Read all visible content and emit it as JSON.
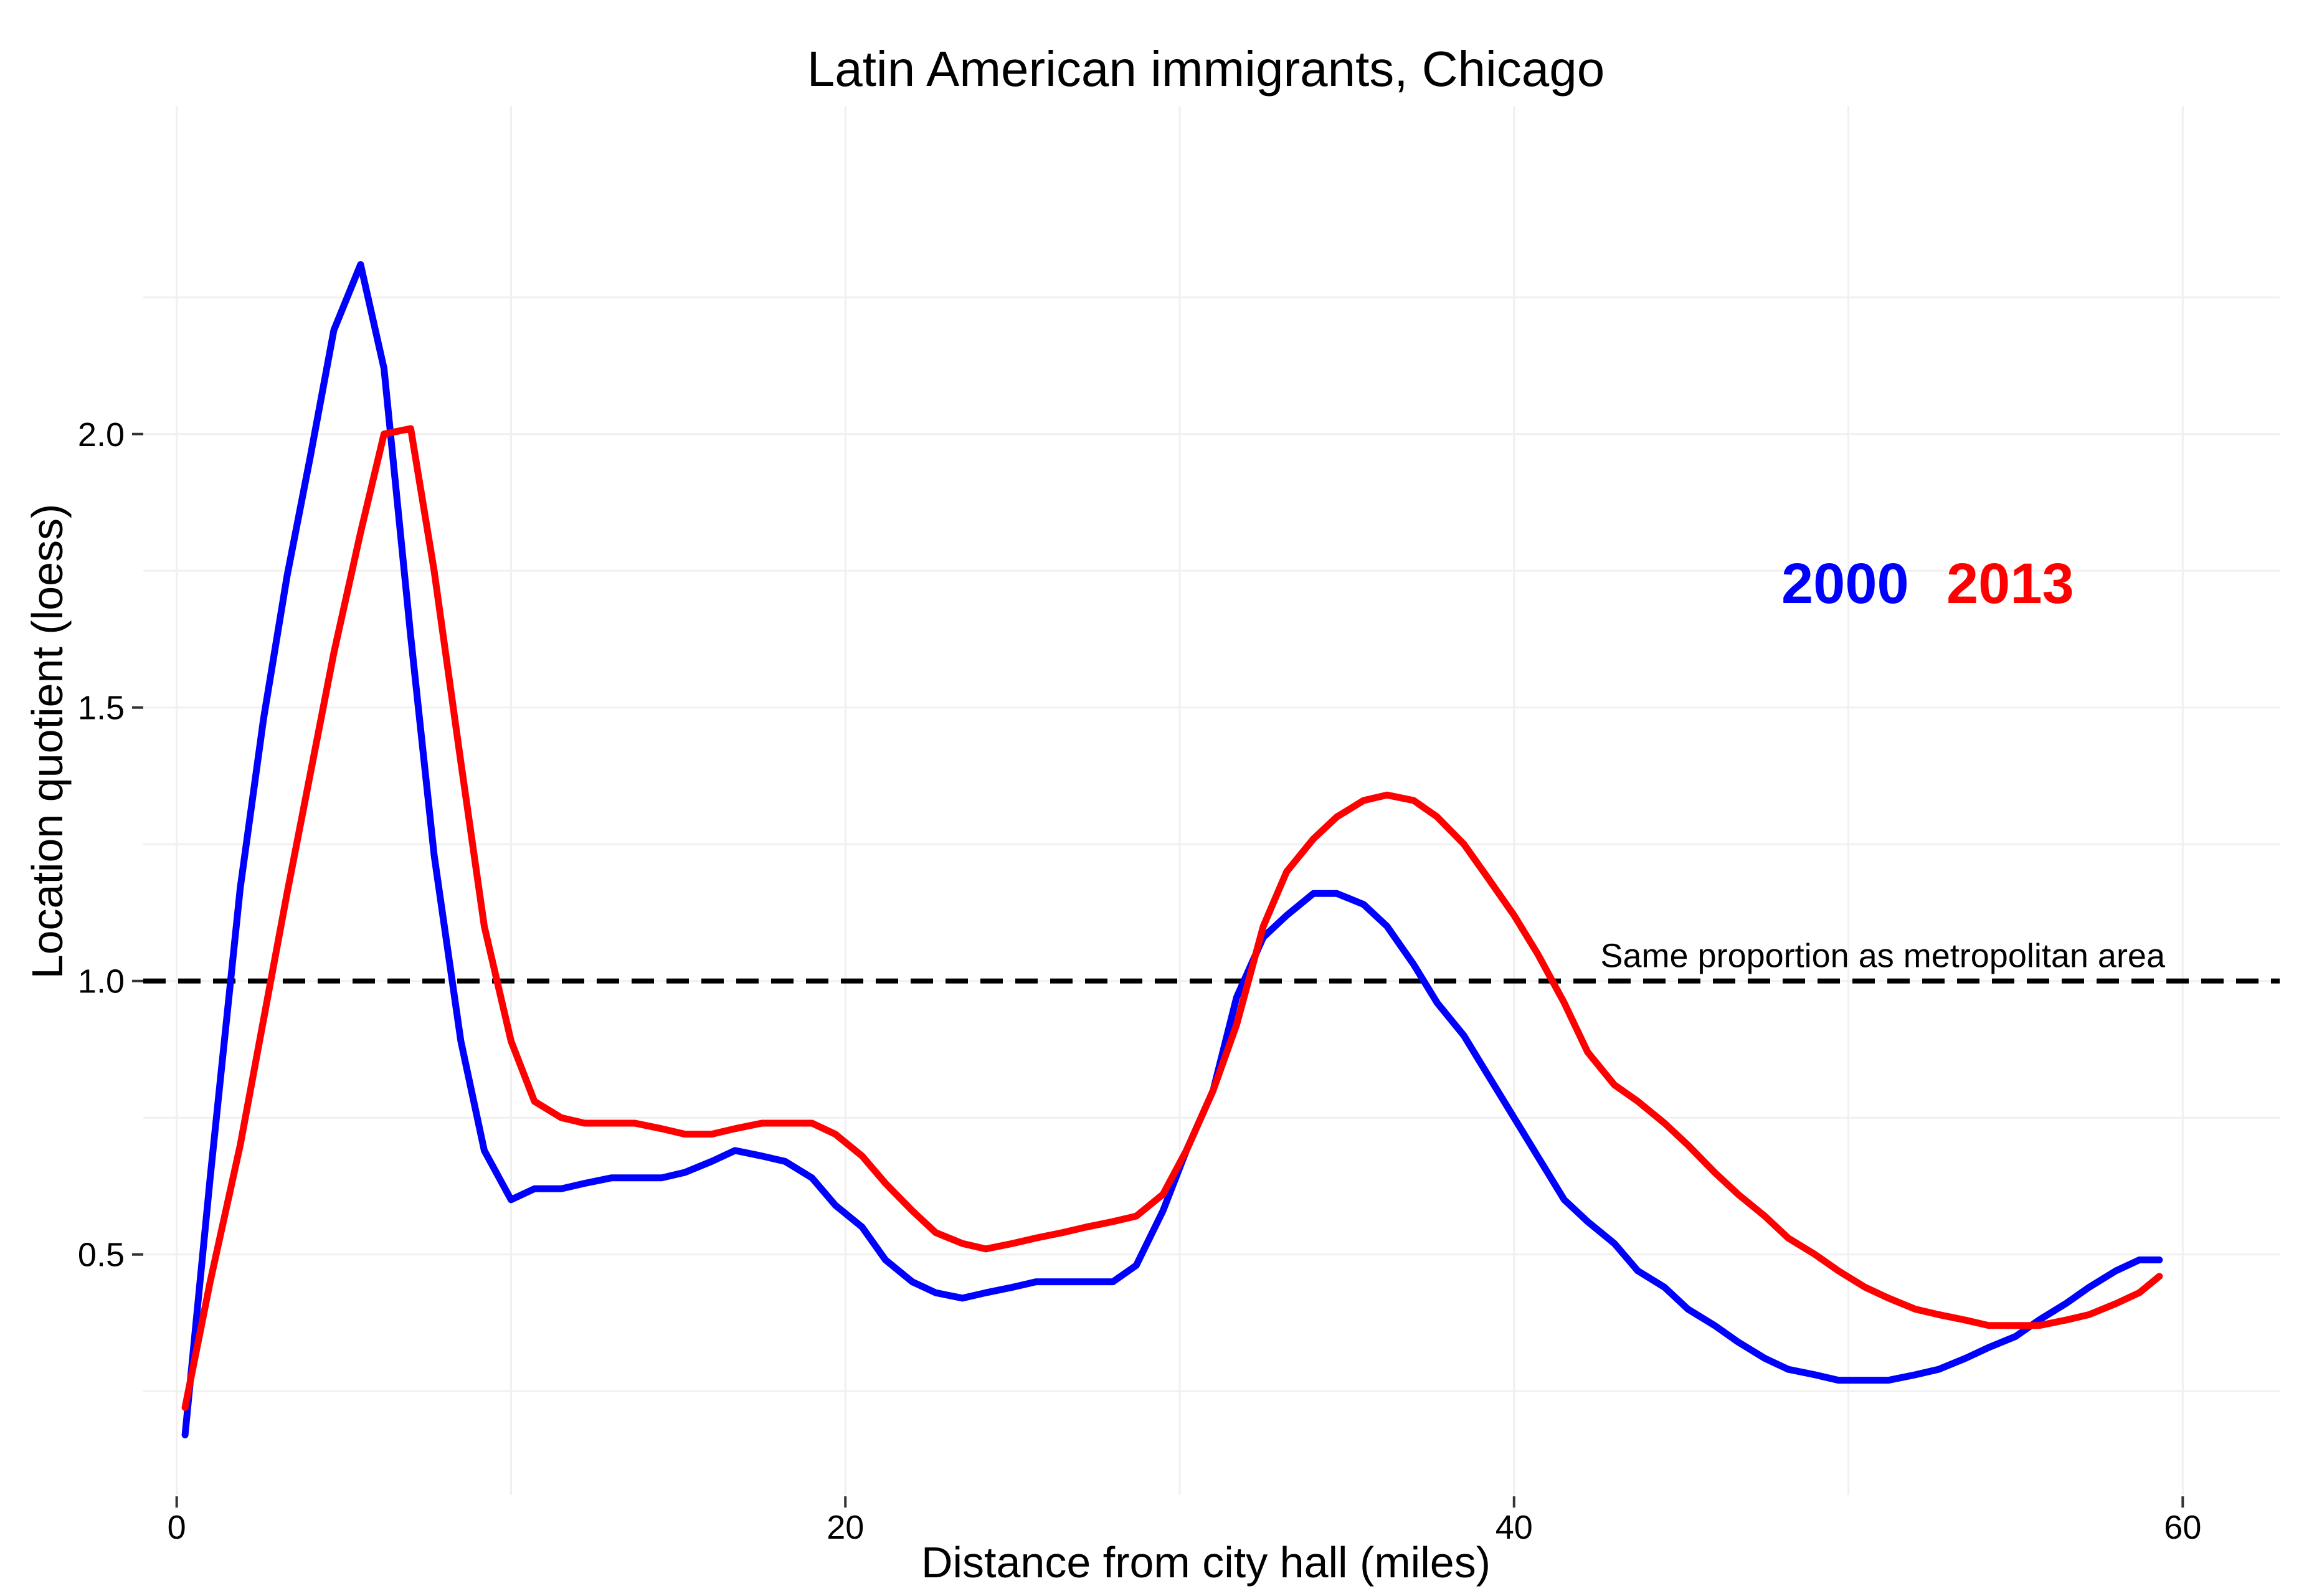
{
  "chart_data": {
    "type": "line",
    "title": "Latin American immigrants, Chicago",
    "xlabel": "Distance from city hall (miles)",
    "ylabel": "Location quotient (loess)",
    "xlim": [
      -1.0,
      62.9
    ],
    "ylim": [
      0.06,
      2.6
    ],
    "x_ticks": [
      0,
      20,
      40,
      60
    ],
    "x_tick_labels": [
      "0",
      "20",
      "40",
      "60"
    ],
    "y_ticks": [
      0.5,
      1.0,
      1.5,
      2.0
    ],
    "y_tick_labels": [
      "0.5",
      "1.0",
      "1.5",
      "2.0"
    ],
    "grid": true,
    "legend": {
      "placement": "top-right",
      "entries": [
        {
          "label": "2000",
          "color": "#0000ff"
        },
        {
          "label": "2013",
          "color": "#ff0000"
        }
      ]
    },
    "reference_line": {
      "y": 1.0,
      "label": "Same proportion as metropolitan area",
      "color": "#000000",
      "style": "dashed"
    },
    "series": [
      {
        "color": "#0000ff",
        "x": [
          0.25,
          1.0,
          1.9,
          2.6,
          3.3,
          4.0,
          4.7,
          5.5,
          6.2,
          7.0,
          7.7,
          8.5,
          9.2,
          10.0,
          10.7,
          11.5,
          12.2,
          13.0,
          13.7,
          14.5,
          15.2,
          16.0,
          16.7,
          17.5,
          18.2,
          19.0,
          19.7,
          20.5,
          21.2,
          22.0,
          22.7,
          23.5,
          24.2,
          25.0,
          25.7,
          26.5,
          27.2,
          28.0,
          28.7,
          29.5,
          30.2,
          31.0,
          31.7,
          32.5,
          33.2,
          34.0,
          34.7,
          35.5,
          36.2,
          37.0,
          37.7,
          38.5,
          39.2,
          40.0,
          40.7,
          41.5,
          42.2,
          43.0,
          43.7,
          44.5,
          45.2,
          46.0,
          46.7,
          47.5,
          48.2,
          49.0,
          49.7,
          50.5,
          51.2,
          52.0,
          52.7,
          53.5,
          54.2,
          55.0,
          55.7,
          56.5,
          57.2,
          58.0,
          58.7,
          59.3
        ],
        "y": [
          0.17,
          0.64,
          1.17,
          1.48,
          1.74,
          1.96,
          2.19,
          2.31,
          2.12,
          1.63,
          1.23,
          0.89,
          0.69,
          0.6,
          0.62,
          0.62,
          0.63,
          0.64,
          0.64,
          0.64,
          0.65,
          0.67,
          0.69,
          0.68,
          0.67,
          0.64,
          0.59,
          0.55,
          0.49,
          0.45,
          0.43,
          0.42,
          0.43,
          0.44,
          0.45,
          0.45,
          0.45,
          0.45,
          0.48,
          0.58,
          0.69,
          0.8,
          0.97,
          1.08,
          1.12,
          1.16,
          1.16,
          1.14,
          1.1,
          1.03,
          0.96,
          0.9,
          0.83,
          0.75,
          0.68,
          0.6,
          0.56,
          0.52,
          0.47,
          0.44,
          0.4,
          0.37,
          0.34,
          0.31,
          0.29,
          0.28,
          0.27,
          0.27,
          0.27,
          0.28,
          0.29,
          0.31,
          0.33,
          0.35,
          0.38,
          0.41,
          0.44,
          0.47,
          0.49,
          0.49
        ]
      },
      {
        "color": "#ff0000",
        "x": [
          0.25,
          1.0,
          1.9,
          2.6,
          3.3,
          4.0,
          4.7,
          5.5,
          6.2,
          7.0,
          7.7,
          8.5,
          9.2,
          10.0,
          10.7,
          11.5,
          12.2,
          13.0,
          13.7,
          14.5,
          15.2,
          16.0,
          16.7,
          17.5,
          18.2,
          19.0,
          19.7,
          20.5,
          21.2,
          22.0,
          22.7,
          23.5,
          24.2,
          25.0,
          25.7,
          26.5,
          27.2,
          28.0,
          28.7,
          29.5,
          30.2,
          31.0,
          31.7,
          32.5,
          33.2,
          34.0,
          34.7,
          35.5,
          36.2,
          37.0,
          37.7,
          38.5,
          39.2,
          40.0,
          40.7,
          41.5,
          42.2,
          43.0,
          43.7,
          44.5,
          45.2,
          46.0,
          46.7,
          47.5,
          48.2,
          49.0,
          49.7,
          50.5,
          51.2,
          52.0,
          52.7,
          53.5,
          54.2,
          55.0,
          55.7,
          56.5,
          57.2,
          58.0,
          58.7,
          59.3
        ],
        "y": [
          0.22,
          0.45,
          0.7,
          0.93,
          1.16,
          1.38,
          1.6,
          1.82,
          2.0,
          2.01,
          1.75,
          1.4,
          1.1,
          0.89,
          0.78,
          0.75,
          0.74,
          0.74,
          0.74,
          0.73,
          0.72,
          0.72,
          0.73,
          0.74,
          0.74,
          0.74,
          0.72,
          0.68,
          0.63,
          0.58,
          0.54,
          0.52,
          0.51,
          0.52,
          0.53,
          0.54,
          0.55,
          0.56,
          0.57,
          0.61,
          0.69,
          0.8,
          0.92,
          1.1,
          1.2,
          1.26,
          1.3,
          1.33,
          1.34,
          1.33,
          1.3,
          1.25,
          1.19,
          1.12,
          1.05,
          0.96,
          0.87,
          0.81,
          0.78,
          0.74,
          0.7,
          0.65,
          0.61,
          0.57,
          0.53,
          0.5,
          0.47,
          0.44,
          0.42,
          0.4,
          0.39,
          0.38,
          0.37,
          0.37,
          0.37,
          0.38,
          0.39,
          0.41,
          0.43,
          0.46
        ]
      }
    ]
  }
}
